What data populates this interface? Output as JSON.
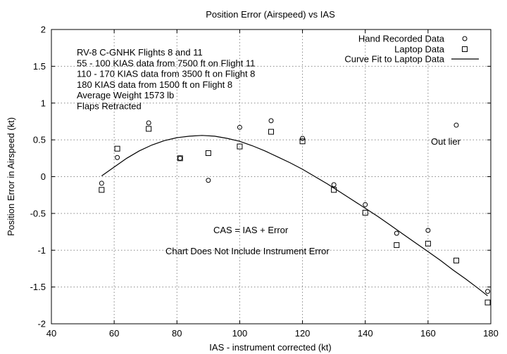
{
  "chart_data": {
    "type": "scatter",
    "title": "Position Error (Airspeed) vs IAS",
    "xlabel": "IAS - instrument corrected (kt)",
    "ylabel": "Position Error in Airspeed (kt)",
    "xlim": [
      40,
      180
    ],
    "ylim": [
      -2,
      2
    ],
    "x_ticks": [
      40,
      60,
      80,
      100,
      120,
      140,
      160,
      180
    ],
    "y_ticks": [
      -2,
      -1.5,
      -1,
      -0.5,
      0,
      0.5,
      1,
      1.5,
      2
    ],
    "x_tick_labels": [
      "40",
      "60",
      "80",
      "100",
      "120",
      "140",
      "160",
      "180"
    ],
    "y_tick_labels": [
      "-2",
      "-1.5",
      "-1",
      "-0.5",
      "0",
      "0.5",
      "1",
      "1.5",
      "2"
    ],
    "grid": true,
    "legend_position": "top-right",
    "series": [
      {
        "name": "Hand Recorded Data",
        "marker": "circle",
        "x": [
          56,
          61,
          71,
          81,
          90,
          100,
          110,
          120,
          130,
          140,
          150,
          160,
          169,
          179
        ],
        "y": [
          -0.09,
          0.26,
          0.73,
          0.25,
          -0.05,
          0.67,
          0.76,
          0.52,
          -0.11,
          -0.38,
          -0.77,
          -0.73,
          0.7,
          -1.56
        ]
      },
      {
        "name": "Laptop Data",
        "marker": "square",
        "x": [
          56,
          61,
          71,
          81,
          90,
          100,
          110,
          120,
          130,
          140,
          150,
          160,
          169,
          179
        ],
        "y": [
          -0.18,
          0.38,
          0.65,
          0.25,
          0.32,
          0.41,
          0.61,
          0.48,
          -0.18,
          -0.49,
          -0.93,
          -0.91,
          -1.14,
          -1.71
        ]
      },
      {
        "name": "Curve Fit to Laptop Data",
        "marker": "line",
        "x": [
          56,
          60,
          64,
          68,
          72,
          76,
          80,
          84,
          88,
          92,
          96,
          100,
          104,
          108,
          112,
          116,
          120,
          124,
          128,
          132,
          136,
          140,
          144,
          148,
          152,
          156,
          160,
          164,
          168,
          172,
          176,
          179
        ],
        "y": [
          0.01,
          0.13,
          0.25,
          0.35,
          0.43,
          0.49,
          0.53,
          0.55,
          0.56,
          0.55,
          0.52,
          0.48,
          0.42,
          0.35,
          0.27,
          0.19,
          0.1,
          0.0,
          -0.1,
          -0.21,
          -0.32,
          -0.43,
          -0.54,
          -0.66,
          -0.78,
          -0.9,
          -1.02,
          -1.14,
          -1.27,
          -1.39,
          -1.52,
          -1.62
        ]
      }
    ],
    "annotations": {
      "info_lines": [
        "RV-8 C-GNHK Flights 8 and 11",
        "55 - 100 KIAS data from 7500 ft on Flight 11",
        "110 - 170 KIAS data from 3500 ft on Flight 8",
        "180 KIAS data from 1500 ft on Flight 8",
        "Average Weight 1573 lb",
        "Flaps Retracted"
      ],
      "outlier": "Out lier",
      "formula": "CAS = IAS + Error",
      "note": "Chart Does Not Include Instrument Error"
    }
  }
}
